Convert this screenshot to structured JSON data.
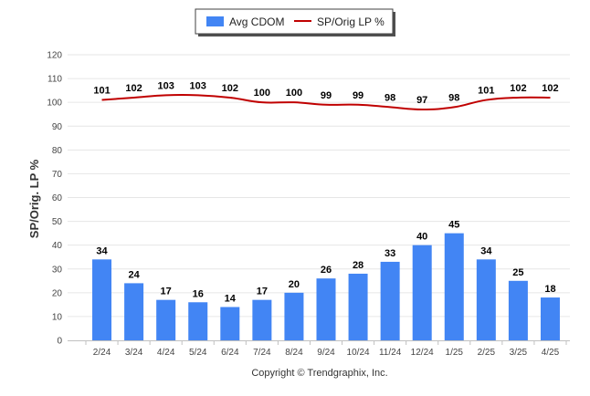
{
  "chart_data": {
    "type": "bar",
    "categories": [
      "2/24",
      "3/24",
      "4/24",
      "5/24",
      "6/24",
      "7/24",
      "8/24",
      "9/24",
      "10/24",
      "11/24",
      "12/24",
      "1/25",
      "2/25",
      "3/25",
      "4/25"
    ],
    "series": [
      {
        "name": "Avg CDOM",
        "type": "bar",
        "color": "#4285f4",
        "values": [
          34,
          24,
          17,
          16,
          14,
          17,
          20,
          26,
          28,
          33,
          40,
          45,
          34,
          25,
          18
        ]
      },
      {
        "name": "SP/Orig LP %",
        "type": "line",
        "color": "#c00000",
        "values": [
          101,
          102,
          103,
          103,
          102,
          100,
          100,
          99,
          99,
          98,
          97,
          98,
          101,
          102,
          102
        ]
      }
    ],
    "ylabel": "SP/Orig. LP %",
    "ylim": [
      0,
      120
    ],
    "yticks": [
      0,
      10,
      20,
      30,
      40,
      50,
      60,
      70,
      80,
      90,
      100,
      110,
      120
    ],
    "grid": true,
    "legend_position": "top-center"
  },
  "footer": "Copyright © Trendgraphix, Inc."
}
